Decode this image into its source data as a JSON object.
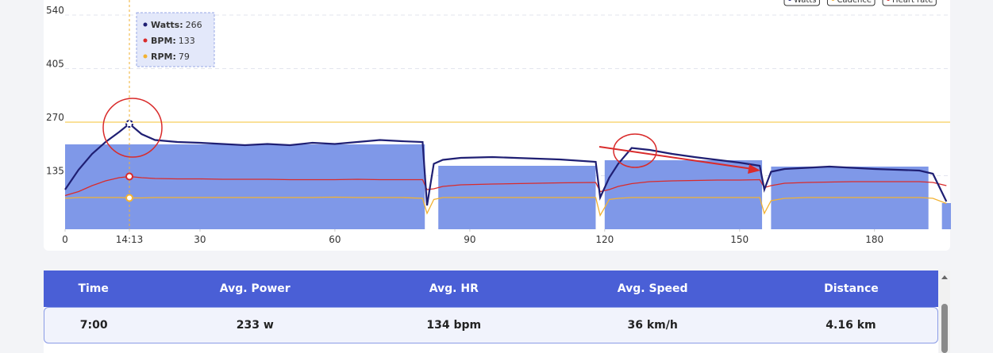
{
  "chart_data": {
    "type": "line",
    "legend": [
      "Watts",
      "Cadence",
      "Heart rate"
    ],
    "x": [
      0,
      3,
      6,
      9,
      12,
      14.3,
      17,
      20,
      25,
      30,
      35,
      40,
      45,
      50,
      55,
      60,
      65,
      70,
      75,
      79.5,
      80.5,
      82,
      84,
      88,
      95,
      100,
      105,
      110,
      118,
      119,
      121,
      123,
      126,
      130,
      135,
      140,
      145,
      150,
      154.5,
      155.5,
      157,
      160,
      165,
      170,
      175,
      180,
      185,
      190,
      193,
      196
    ],
    "series": [
      {
        "name": "Watts",
        "color": "#1f1f73",
        "values": [
          100,
          150,
          190,
          220,
          245,
          266,
          240,
          225,
          220,
          218,
          215,
          212,
          215,
          212,
          218,
          215,
          220,
          225,
          222,
          220,
          60,
          165,
          175,
          180,
          182,
          180,
          178,
          176,
          170,
          80,
          130,
          165,
          205,
          200,
          190,
          182,
          175,
          168,
          160,
          100,
          145,
          152,
          155,
          158,
          155,
          152,
          150,
          148,
          140,
          70
        ]
      },
      {
        "name": "Cadence",
        "color": "#f2b233",
        "values": [
          78,
          80,
          80,
          80,
          80,
          79,
          79,
          80,
          80,
          80,
          80,
          80,
          80,
          80,
          80,
          81,
          80,
          80,
          80,
          78,
          40,
          75,
          80,
          80,
          80,
          80,
          80,
          80,
          80,
          35,
          75,
          78,
          80,
          80,
          80,
          80,
          80,
          80,
          80,
          40,
          72,
          78,
          80,
          80,
          80,
          80,
          80,
          80,
          78,
          65
        ]
      },
      {
        "name": "Heart rate",
        "color": "#d92b2b",
        "values": [
          85,
          95,
          110,
          122,
          130,
          133,
          130,
          128,
          127,
          127,
          126,
          126,
          126,
          125,
          125,
          125,
          126,
          125,
          125,
          125,
          100,
          102,
          108,
          112,
          114,
          115,
          116,
          117,
          118,
          95,
          100,
          108,
          115,
          120,
          122,
          123,
          124,
          124,
          125,
          105,
          110,
          116,
          118,
          119,
          120,
          120,
          120,
          120,
          118,
          110
        ]
      }
    ],
    "intervals": [
      {
        "start": 0,
        "end": 80,
        "value": 214
      },
      {
        "start": 83,
        "end": 118,
        "value": 160
      },
      {
        "start": 120,
        "end": 155,
        "value": 174
      },
      {
        "start": 157,
        "end": 192,
        "value": 158
      },
      {
        "start": 195,
        "end": 197,
        "value": 66
      }
    ],
    "interval_color": "#7f98e8",
    "reference_line": 270,
    "reference_color": "#f7cf5c",
    "xlim": [
      0,
      197
    ],
    "ylim": [
      0,
      570
    ],
    "xticks": [
      0,
      {
        "value": 14.3,
        "label": "14:13"
      },
      30,
      60,
      90,
      120,
      150,
      180
    ],
    "yticks": [
      135,
      270,
      405,
      540
    ],
    "grid": true,
    "tooltip": [
      {
        "label": "Watts:",
        "value": 266
      },
      {
        "label": "BPM:",
        "value": 133
      },
      {
        "label": "RPM:",
        "value": 79
      }
    ]
  },
  "table": {
    "header": [
      "Time",
      "Avg. Power",
      "Avg. HR",
      "Avg. Speed",
      "Distance"
    ],
    "rows": [
      [
        "7:00",
        "233 w",
        "134 bpm",
        "36 km/h",
        "4.16 km"
      ]
    ]
  }
}
